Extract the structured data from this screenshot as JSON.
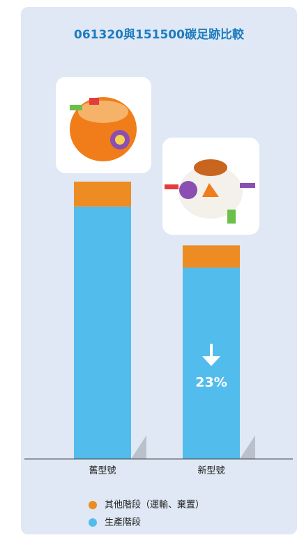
{
  "chart_data": {
    "type": "stacked-bar",
    "title": "061320與151500碳足跡比較",
    "categories": [
      "舊型號",
      "新型號"
    ],
    "series": [
      {
        "name": "生產階段",
        "color": "#52bcec",
        "values": [
          91,
          69
        ]
      },
      {
        "name": "其他階段（運輸、棄置）",
        "color": "#ec8c23",
        "values": [
          9,
          8
        ]
      }
    ],
    "annotation": "23%"
  }
}
